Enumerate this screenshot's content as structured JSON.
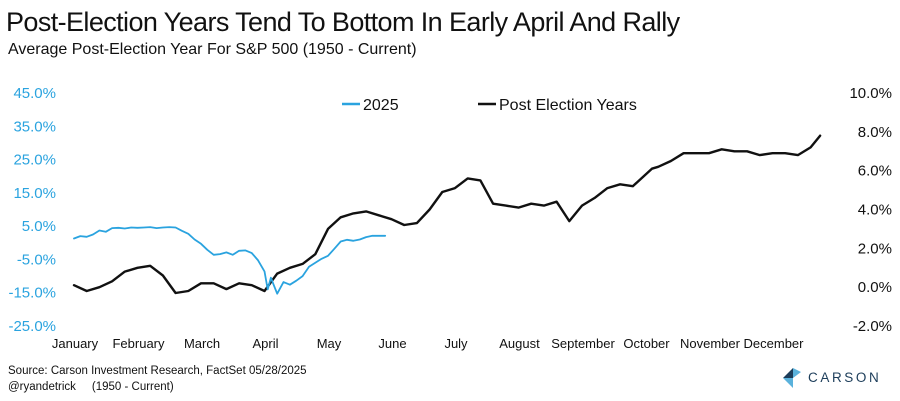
{
  "header": {
    "title": "Post-Election Years Tend To Bottom In Early April And Rally",
    "subtitle": "Average Post-Election Year For S&P 500 (1950 - Current)"
  },
  "footer": {
    "source": "Source: Carson Investment Research, FactSet 05/28/2025",
    "handle": "@ryandetrick     (1950 - Current)",
    "brand_name": "CARSON",
    "brand_logo_icon": "carson-logo-icon",
    "brand_color": "#1c3d5a",
    "brand_accent_color": "#5ab2dc"
  },
  "chart_data": {
    "type": "line",
    "title": "Post-Election Years Tend To Bottom In Early April And Rally",
    "subtitle": "Average Post-Election Year For S&P 500 (1950 - Current)",
    "x_categories": [
      "January",
      "February",
      "March",
      "April",
      "May",
      "June",
      "July",
      "August",
      "September",
      "October",
      "November",
      "December"
    ],
    "x_unit": "month of year (fractional)",
    "y_left": {
      "ticks": [
        "45.0%",
        "35.0%",
        "25.0%",
        "15.0%",
        "5.0%",
        "-5.0%",
        "-15.0%",
        "-25.0%"
      ],
      "range": [
        -25,
        45
      ],
      "color": "#2aa3df",
      "applies_to": "2025"
    },
    "y_right": {
      "ticks": [
        "10.0%",
        "8.0%",
        "6.0%",
        "4.0%",
        "2.0%",
        "0.0%",
        "-2.0%"
      ],
      "range": [
        -2,
        10
      ],
      "color": "#111111",
      "applies_to": "Post Election Years"
    },
    "legend_position": "top-center",
    "grid": false,
    "series": [
      {
        "name": "2025",
        "axis": "left",
        "color": "#2aa3df",
        "x": [
          0,
          0.1,
          0.2,
          0.3,
          0.4,
          0.5,
          0.6,
          0.7,
          0.8,
          0.9,
          1.0,
          1.1,
          1.2,
          1.3,
          1.4,
          1.5,
          1.6,
          1.7,
          1.8,
          1.9,
          2.0,
          2.1,
          2.2,
          2.3,
          2.4,
          2.5,
          2.6,
          2.7,
          2.8,
          2.9,
          3.0,
          3.05,
          3.1,
          3.15,
          3.2,
          3.3,
          3.4,
          3.5,
          3.6,
          3.7,
          3.8,
          3.9,
          4.0,
          4.1,
          4.2,
          4.3,
          4.4,
          4.5,
          4.6,
          4.7,
          4.9
        ],
        "values": [
          1.3,
          2.0,
          1.8,
          2.5,
          3.7,
          3.3,
          4.4,
          4.5,
          4.3,
          4.6,
          4.5,
          4.6,
          4.7,
          4.4,
          4.6,
          4.7,
          4.6,
          3.6,
          2.7,
          1.0,
          -0.3,
          -2.1,
          -3.6,
          -3.4,
          -2.9,
          -3.6,
          -2.4,
          -2.3,
          -3.1,
          -5.3,
          -8.6,
          -14.0,
          -10.5,
          -12.9,
          -15.3,
          -11.8,
          -12.6,
          -11.4,
          -10.0,
          -7.2,
          -6.0,
          -4.8,
          -3.9,
          -1.8,
          0.4,
          0.9,
          0.6,
          1.0,
          1.7,
          2.1,
          2.1
        ]
      },
      {
        "name": "Post Election Years",
        "axis": "right",
        "color": "#111111",
        "x": [
          0,
          0.2,
          0.4,
          0.6,
          0.8,
          1.0,
          1.2,
          1.4,
          1.6,
          1.8,
          2.0,
          2.2,
          2.4,
          2.6,
          2.8,
          3.0,
          3.2,
          3.4,
          3.6,
          3.8,
          4.0,
          4.2,
          4.4,
          4.6,
          4.8,
          5.0,
          5.2,
          5.4,
          5.6,
          5.8,
          6.0,
          6.2,
          6.4,
          6.6,
          6.8,
          7.0,
          7.2,
          7.4,
          7.6,
          7.8,
          8.0,
          8.2,
          8.4,
          8.6,
          8.8,
          9.0,
          9.1,
          9.2,
          9.4,
          9.6,
          9.8,
          10.0,
          10.2,
          10.4,
          10.6,
          10.8,
          11.0,
          11.2,
          11.4,
          11.6,
          11.75
        ],
        "values": [
          0.1,
          -0.2,
          0.0,
          0.3,
          0.8,
          1.0,
          1.1,
          0.6,
          -0.3,
          -0.2,
          0.2,
          0.2,
          -0.1,
          0.2,
          0.1,
          -0.2,
          0.7,
          1.0,
          1.2,
          1.7,
          3.0,
          3.6,
          3.8,
          3.9,
          3.7,
          3.5,
          3.2,
          3.3,
          4.0,
          4.9,
          5.1,
          5.6,
          5.5,
          4.3,
          4.2,
          4.1,
          4.3,
          4.2,
          4.4,
          3.4,
          4.2,
          4.6,
          5.1,
          5.3,
          5.2,
          5.8,
          6.1,
          6.2,
          6.5,
          6.9,
          6.9,
          6.9,
          7.1,
          7.0,
          7.0,
          6.8,
          6.9,
          6.9,
          6.8,
          7.2,
          7.8
        ]
      }
    ]
  }
}
